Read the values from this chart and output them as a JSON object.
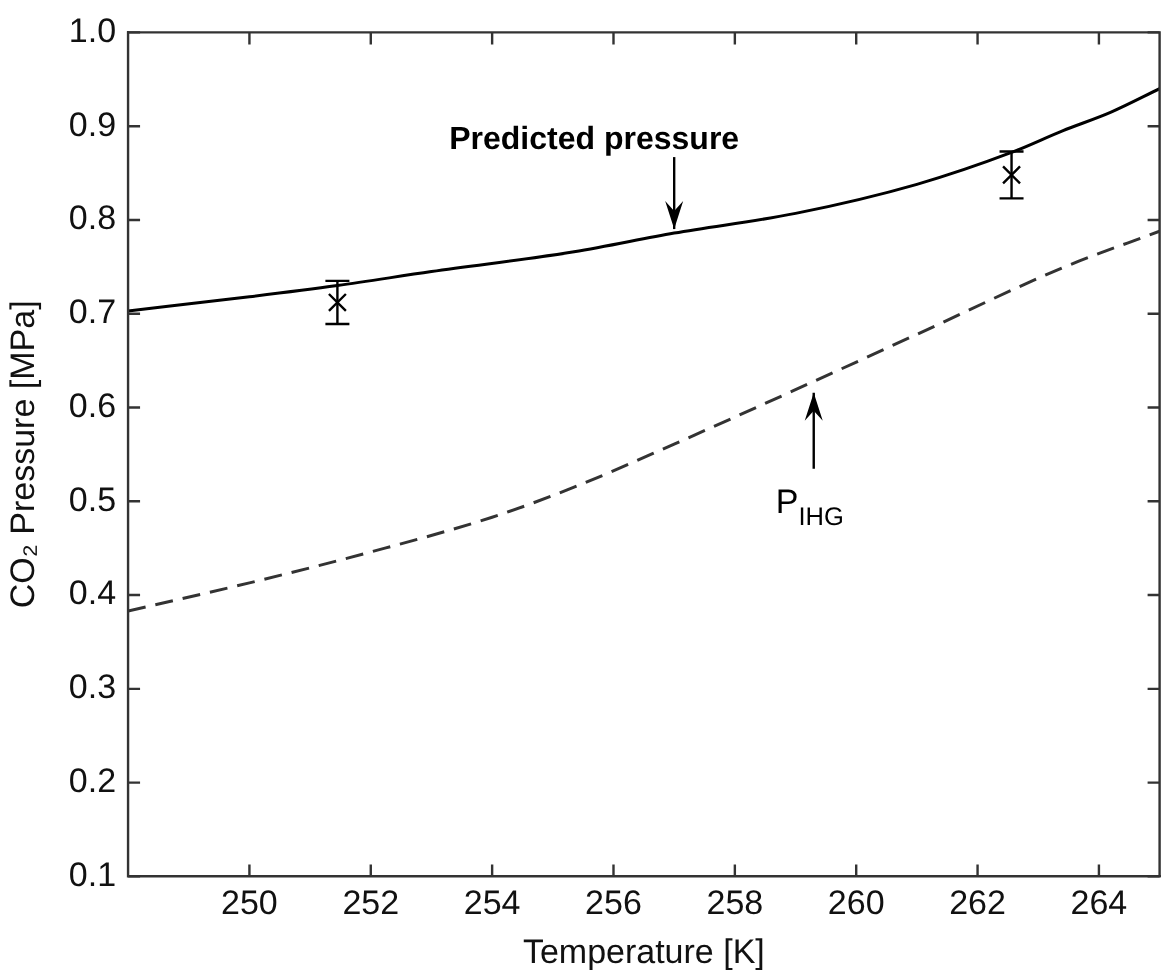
{
  "chart_data": {
    "type": "line",
    "xlabel": "Temperature [K]",
    "ylabel": "CO₂ Pressure [MPa]",
    "xlim": [
      248,
      265
    ],
    "xticks": [
      250,
      252,
      254,
      256,
      258,
      260,
      262,
      264
    ],
    "ylim": [
      0.1,
      1.0
    ],
    "yticks": [
      {
        "value": 0.1,
        "label": "0.1"
      },
      {
        "value": 0.2,
        "label": "0.2"
      },
      {
        "value": 0.3,
        "label": "0.3"
      },
      {
        "value": 0.4,
        "label": "0.4"
      },
      {
        "value": 0.5,
        "label": "0.5"
      },
      {
        "value": 0.6,
        "label": "0.6"
      },
      {
        "value": 0.7,
        "label": "0.7"
      },
      {
        "value": 0.8,
        "label": "0.8"
      },
      {
        "value": 0.9,
        "label": "0.9"
      },
      {
        "value": 1.0,
        "label": "1.0"
      }
    ],
    "grid": false,
    "legend": false,
    "series": [
      {
        "type": "line",
        "color": "#000000",
        "line_style": "solid",
        "marker": "none",
        "x": [
          248,
          250,
          251.45,
          253,
          255.35,
          257,
          259,
          261,
          262.56,
          263.4,
          264.2,
          265
        ],
        "values": [
          0.703,
          0.718,
          0.73,
          0.745,
          0.766,
          0.786,
          0.807,
          0.838,
          0.872,
          0.895,
          0.915,
          0.94
        ]
      },
      {
        "type": "line",
        "color": "#333333",
        "line_style": "dashed",
        "marker": "none",
        "x": [
          248,
          250,
          252,
          254,
          255.35,
          257,
          259,
          261,
          263.4,
          265
        ],
        "values": [
          0.383,
          0.413,
          0.446,
          0.483,
          0.515,
          0.561,
          0.619,
          0.678,
          0.749,
          0.788
        ]
      },
      {
        "type": "scatter",
        "color": "#000000",
        "marker": "cross",
        "x": [
          251.45,
          262.56
        ],
        "values": [
          0.712,
          0.848
        ],
        "errors": [
          0.023,
          0.025
        ]
      }
    ],
    "annotations": [
      {
        "text": "Predicted pressure",
        "x": 257,
        "y": 0.786
      },
      {
        "text": "P$_{IHG}$",
        "x": 259.3,
        "y": 0.62
      }
    ]
  }
}
